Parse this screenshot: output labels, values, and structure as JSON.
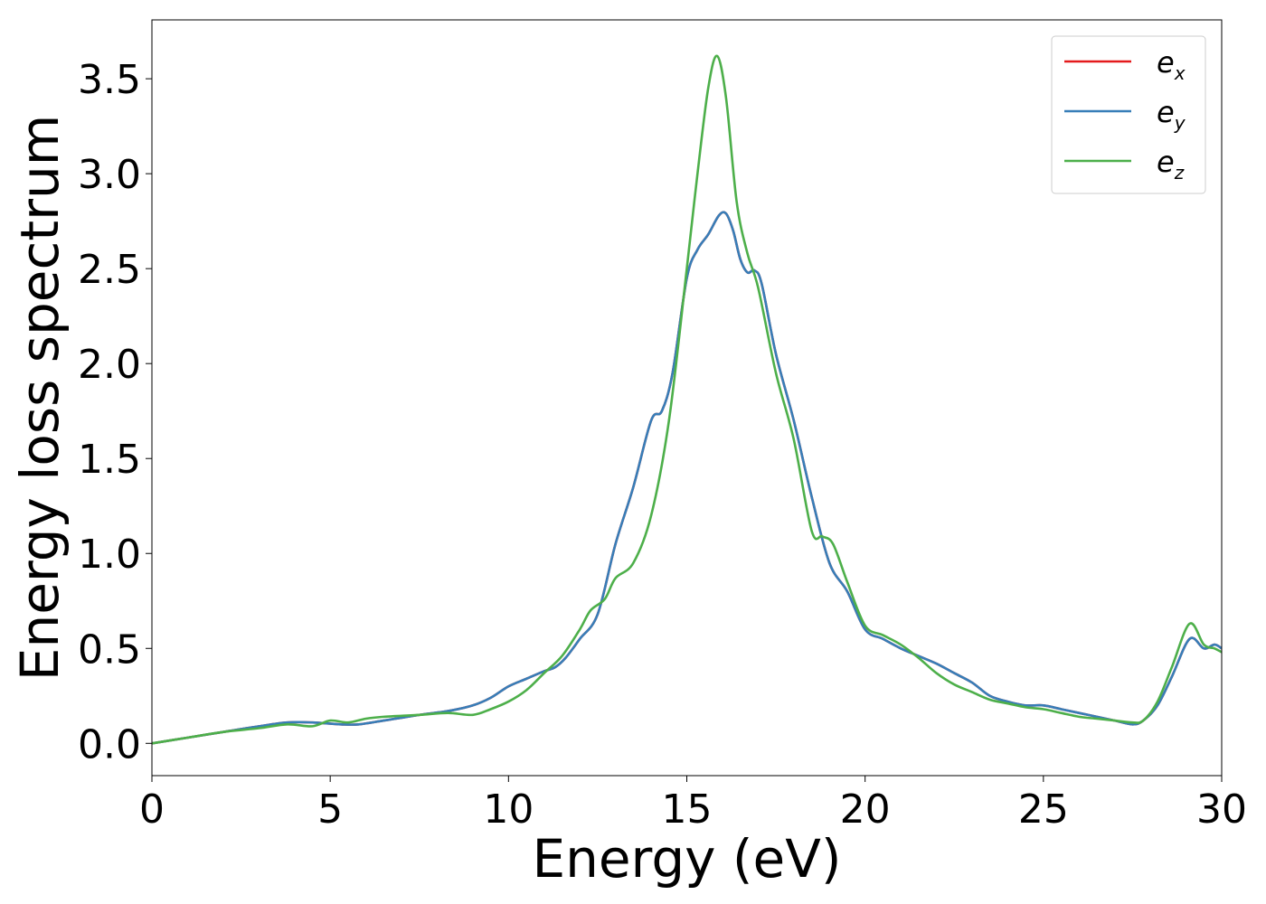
{
  "chart_data": {
    "type": "line",
    "title": "",
    "xlabel": "Energy (eV)",
    "ylabel": "Energy loss spectrum",
    "xlim": [
      0,
      30
    ],
    "ylim": [
      -0.17,
      3.81
    ],
    "xticks": [
      0,
      5,
      10,
      15,
      20,
      25,
      30
    ],
    "xtick_labels": [
      "0",
      "5",
      "10",
      "15",
      "20",
      "25",
      "30"
    ],
    "yticks": [
      0.0,
      0.5,
      1.0,
      1.5,
      2.0,
      2.5,
      3.0,
      3.5
    ],
    "ytick_labels": [
      "0.0",
      "0.5",
      "1.0",
      "1.5",
      "2.0",
      "2.5",
      "3.0",
      "3.5"
    ],
    "grid": false,
    "legend_position": "top-right",
    "series": [
      {
        "name": "e_x",
        "legend_base": "e",
        "legend_sub": "x",
        "color": "#e41a1c",
        "x": [
          0,
          1,
          2,
          3,
          3.8,
          4.5,
          5.3,
          5.8,
          6.5,
          7.5,
          8.3,
          9,
          9.5,
          10,
          10.5,
          11,
          11.3,
          11.6,
          12,
          12.5,
          13,
          13.5,
          14,
          14.3,
          14.6,
          15,
          15.3,
          15.6,
          15.9,
          16.1,
          16.3,
          16.5,
          16.7,
          16.9,
          17.1,
          17.5,
          18,
          18.5,
          19,
          19.5,
          20,
          20.5,
          21,
          21.5,
          22,
          22.5,
          23,
          23.5,
          24,
          24.5,
          25,
          25.5,
          26,
          26.5,
          27,
          27.5,
          27.8,
          28.2,
          28.6,
          29.1,
          29.5,
          29.8,
          30
        ],
        "y": [
          0.0,
          0.03,
          0.06,
          0.09,
          0.11,
          0.11,
          0.1,
          0.1,
          0.12,
          0.15,
          0.17,
          0.2,
          0.24,
          0.3,
          0.34,
          0.38,
          0.4,
          0.45,
          0.55,
          0.68,
          1.05,
          1.35,
          1.7,
          1.75,
          1.95,
          2.45,
          2.6,
          2.68,
          2.78,
          2.79,
          2.7,
          2.55,
          2.48,
          2.49,
          2.42,
          2.05,
          1.7,
          1.3,
          0.95,
          0.8,
          0.6,
          0.55,
          0.5,
          0.46,
          0.42,
          0.37,
          0.32,
          0.25,
          0.22,
          0.2,
          0.2,
          0.18,
          0.16,
          0.14,
          0.12,
          0.1,
          0.12,
          0.2,
          0.35,
          0.55,
          0.5,
          0.52,
          0.5
        ]
      },
      {
        "name": "e_y",
        "legend_base": "e",
        "legend_sub": "y",
        "color": "#377eb8",
        "x": [
          0,
          1,
          2,
          3,
          3.8,
          4.5,
          5.3,
          5.8,
          6.5,
          7.5,
          8.3,
          9,
          9.5,
          10,
          10.5,
          11,
          11.3,
          11.6,
          12,
          12.5,
          13,
          13.5,
          14,
          14.3,
          14.6,
          15,
          15.3,
          15.6,
          15.9,
          16.1,
          16.3,
          16.5,
          16.7,
          16.9,
          17.1,
          17.5,
          18,
          18.5,
          19,
          19.5,
          20,
          20.5,
          21,
          21.5,
          22,
          22.5,
          23,
          23.5,
          24,
          24.5,
          25,
          25.5,
          26,
          26.5,
          27,
          27.5,
          27.8,
          28.2,
          28.6,
          29.1,
          29.5,
          29.8,
          30
        ],
        "y": [
          0.0,
          0.03,
          0.06,
          0.09,
          0.11,
          0.11,
          0.1,
          0.1,
          0.12,
          0.15,
          0.17,
          0.2,
          0.24,
          0.3,
          0.34,
          0.38,
          0.4,
          0.45,
          0.55,
          0.68,
          1.05,
          1.35,
          1.7,
          1.75,
          1.95,
          2.45,
          2.6,
          2.68,
          2.78,
          2.79,
          2.7,
          2.55,
          2.48,
          2.49,
          2.42,
          2.05,
          1.7,
          1.3,
          0.95,
          0.8,
          0.6,
          0.55,
          0.5,
          0.46,
          0.42,
          0.37,
          0.32,
          0.25,
          0.22,
          0.2,
          0.2,
          0.18,
          0.16,
          0.14,
          0.12,
          0.1,
          0.12,
          0.2,
          0.35,
          0.55,
          0.5,
          0.52,
          0.5
        ]
      },
      {
        "name": "e_z",
        "legend_base": "e",
        "legend_sub": "z",
        "color": "#4daf4a",
        "x": [
          0,
          1,
          2,
          3,
          3.8,
          4.5,
          5,
          5.5,
          6,
          6.5,
          7.5,
          8.3,
          9,
          9.5,
          10,
          10.5,
          11,
          11.5,
          12,
          12.3,
          12.7,
          13,
          13.5,
          14,
          14.5,
          15,
          15.3,
          15.6,
          15.85,
          16.1,
          16.4,
          16.7,
          17,
          17.5,
          18,
          18.5,
          18.8,
          19.1,
          19.5,
          20,
          20.5,
          21,
          21.5,
          22,
          22.5,
          23,
          23.5,
          24,
          24.5,
          25,
          25.5,
          26,
          26.5,
          27,
          27.5,
          27.8,
          28.2,
          28.6,
          29.1,
          29.5,
          29.8,
          30
        ],
        "y": [
          0.0,
          0.03,
          0.06,
          0.08,
          0.1,
          0.09,
          0.12,
          0.11,
          0.13,
          0.14,
          0.15,
          0.16,
          0.15,
          0.18,
          0.22,
          0.28,
          0.37,
          0.46,
          0.6,
          0.7,
          0.76,
          0.87,
          0.95,
          1.2,
          1.7,
          2.5,
          3.0,
          3.45,
          3.62,
          3.4,
          2.85,
          2.58,
          2.4,
          1.95,
          1.6,
          1.12,
          1.09,
          1.05,
          0.85,
          0.62,
          0.57,
          0.52,
          0.45,
          0.37,
          0.31,
          0.27,
          0.23,
          0.21,
          0.19,
          0.18,
          0.16,
          0.14,
          0.13,
          0.12,
          0.11,
          0.12,
          0.22,
          0.4,
          0.63,
          0.52,
          0.5,
          0.48
        ]
      }
    ]
  }
}
